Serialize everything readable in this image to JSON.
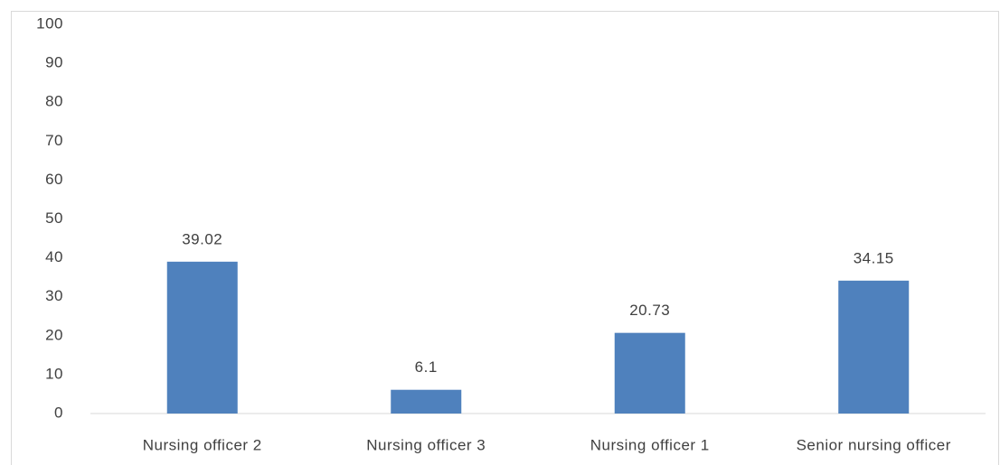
{
  "chart_data": {
    "type": "bar",
    "categories": [
      "Nursing officer 2",
      "Nursing officer 3",
      "Nursing officer 1",
      "Senior nursing officer"
    ],
    "values": [
      39.02,
      6.1,
      20.73,
      34.15
    ],
    "color": "#4f81bd",
    "ylim": [
      0,
      100
    ],
    "yticks": [
      0,
      10,
      20,
      30,
      40,
      50,
      60,
      70,
      80,
      90,
      100
    ],
    "grid": false
  }
}
